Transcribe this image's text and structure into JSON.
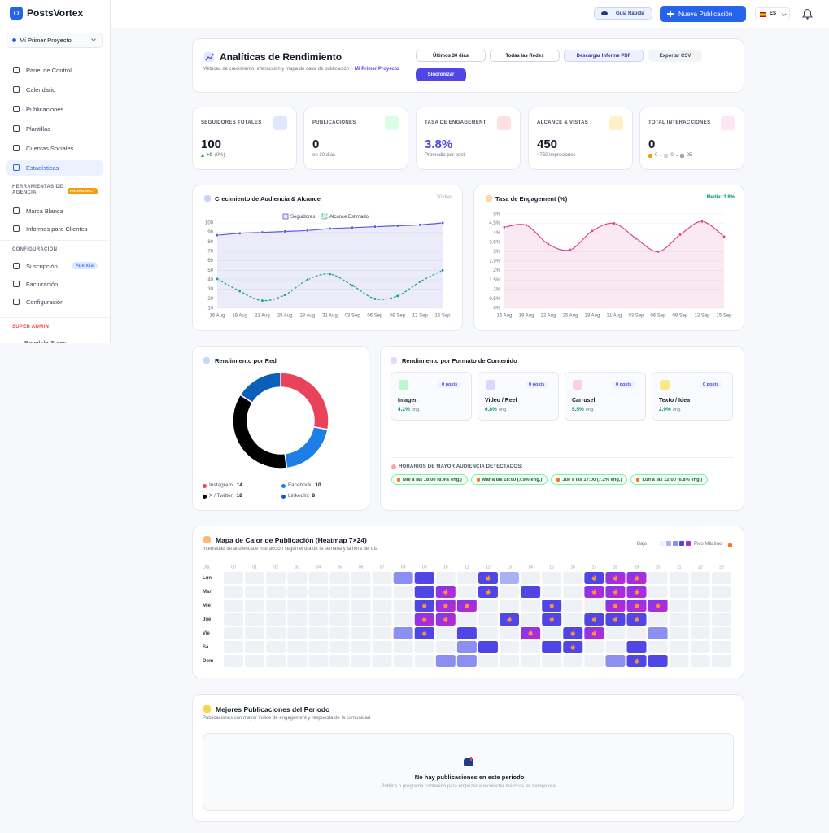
{
  "sidebar": {
    "brand": "PostsVortex",
    "project": "Mi Primer Proyecto",
    "nav": [
      "Panel de Control",
      "Calendario",
      "Publicaciones",
      "Plantillas",
      "Cuentas Sociales",
      "Estadísticas"
    ],
    "agency_title": [
      "HERRAMIENTAS DE",
      "AGENCIA"
    ],
    "agency_badge": "PROAGENCY",
    "agency_nav": [
      "Marca Blanca",
      "Informes para Clientes"
    ],
    "config_title": "CONFIGURACIÓN",
    "config_nav": [
      "Suscripción",
      "Facturación",
      "Configuración"
    ],
    "plan_badge": "Agencia",
    "admin_title": "SUPER ADMIN",
    "admin_nav": [
      "Panel de Super"
    ]
  },
  "topbar": {
    "guide": "Guía Rápida",
    "new_post": "Nueva Publicación",
    "language": "ES"
  },
  "header": {
    "title": "Analíticas de Rendimiento",
    "subtitle": "Métricas de crecimiento, interacción y mapa de calor de publicación •",
    "project": "Mi Primer Proyecto",
    "period": "Últimos 30 días",
    "network": "Todas las Redes",
    "pdf": "Descargar Informe PDF",
    "csv": "Exportar CSV",
    "sync": "Sincronizar"
  },
  "kpis": [
    {
      "label": "SEGUIDORES TOTALES",
      "value": "100",
      "change": "+0",
      "change_pct": "(0%)"
    },
    {
      "label": "PUBLICACIONES",
      "value": "0",
      "note": "en 30 días"
    },
    {
      "label": "TASA DE ENGAGEMENT",
      "value": "3.8%",
      "note": "Promedio por post"
    },
    {
      "label": "ALCANCE & VISTAS",
      "value": "450",
      "note": "~750 impresiones"
    },
    {
      "label": "TOTAL INTERACCIONES",
      "value": "0",
      "breakdown": [
        "0",
        "0",
        "25"
      ]
    }
  ],
  "content_formats": {
    "title": "Rendimiento por Formato de Contenido",
    "items": [
      {
        "name": "Imagen",
        "posts": "0 posts",
        "rate": "4.2%",
        "unit": "eng."
      },
      {
        "name": "Video / Reel",
        "posts": "0 posts",
        "rate": "6.8%",
        "unit": "eng."
      },
      {
        "name": "Carrusel",
        "posts": "0 posts",
        "rate": "5.5%",
        "unit": "eng."
      },
      {
        "name": "Texto / Idea",
        "posts": "0 posts",
        "rate": "2.9%",
        "unit": "eng."
      }
    ],
    "peak_title": "HORARIOS DE MAYOR AUDIENCIA DETECTADOS:",
    "peak_times": [
      "Mié a las 18:00 (8.4% eng.)",
      "Mar a las 18:00 (7.9% eng.)",
      "Jue a las 17:00 (7.2% eng.)",
      "Lun a las 12:00 (6.8% eng.)"
    ]
  },
  "best_posts": {
    "title": "Mejores Publicaciones del Periodo",
    "subtitle": "Publicaciones con mayor índice de engagement y respuesta de la comunidad",
    "empty_title": "No hay publicaciones en este periodo",
    "empty_text": "Publica o programa contenido para empezar a recolectar métricas en tiempo real."
  },
  "chart_data": [
    {
      "type": "line",
      "title": "Crecimiento de Audiencia & Alcance",
      "period": "30 días",
      "categories": [
        "16 Aug",
        "19 Aug",
        "22 Aug",
        "25 Aug",
        "28 Aug",
        "31 Aug",
        "03 Sep",
        "06 Sep",
        "09 Sep",
        "12 Sep",
        "15 Sep"
      ],
      "series": [
        {
          "name": "Seguidores",
          "color": "#5b5bd6",
          "area": true,
          "values": [
            87,
            89,
            90,
            91,
            92,
            94,
            95,
            96,
            97,
            98,
            100
          ]
        },
        {
          "name": "Alcance Estimado",
          "color": "#10a37f",
          "dashed": true,
          "values": [
            41,
            28,
            18,
            24,
            40,
            46,
            34,
            20,
            23,
            38,
            50
          ]
        }
      ],
      "ylim": [
        10,
        100
      ],
      "yticks": [
        10,
        20,
        30,
        40,
        50,
        60,
        70,
        80,
        90,
        100
      ],
      "grid": true
    },
    {
      "type": "line",
      "title": "Tasa de Engagement (%)",
      "average": "Media: 3.8%",
      "categories": [
        "16 Aug",
        "19 Aug",
        "22 Aug",
        "25 Aug",
        "28 Aug",
        "31 Aug",
        "03 Sep",
        "06 Sep",
        "09 Sep",
        "12 Sep",
        "15 Sep"
      ],
      "values": [
        4.3,
        4.4,
        3.4,
        3.1,
        4.1,
        4.5,
        3.7,
        3.0,
        3.9,
        4.6,
        3.8
      ],
      "color": "#d9468f",
      "area": true,
      "ylim": [
        0,
        5
      ],
      "yticks": [
        {
          "value": 0,
          "label": "0%"
        },
        {
          "value": 0.5,
          "label": "0.5%"
        },
        {
          "value": 1,
          "label": "1%"
        },
        {
          "value": 1.5,
          "label": "1.5%"
        },
        {
          "value": 2,
          "label": "2%"
        },
        {
          "value": 2.5,
          "label": "2.5%"
        },
        {
          "value": 3,
          "label": "3%"
        },
        {
          "value": 3.5,
          "label": "3.5%"
        },
        {
          "value": 4,
          "label": "4%"
        },
        {
          "value": 4.5,
          "label": "4.5%"
        },
        {
          "value": 5,
          "label": "5%"
        }
      ],
      "grid": true
    },
    {
      "type": "pie",
      "title": "Rendimiento por Red",
      "categories": [
        "Instagram:",
        "Facebook:",
        "X / Twitter:",
        "LinkedIn:"
      ],
      "values": [
        14,
        10,
        18,
        8
      ],
      "colors": [
        "#e8435a",
        "#1d7fe6",
        "#000000",
        "#0c5fb8"
      ]
    },
    {
      "type": "heatmap",
      "title": "Mapa de Calor de Publicación (Heatmap 7×24)",
      "subtitle": "Intensidad de audiencia e interacción según el día de la semana y la hora del día",
      "legend_low": "Bajo",
      "legend_high": "Pico Máximo",
      "row_header": "Día",
      "x": [
        "00",
        "01",
        "02",
        "03",
        "04",
        "05",
        "06",
        "07",
        "08",
        "09",
        "10",
        "11",
        "12",
        "13",
        "14",
        "15",
        "16",
        "17",
        "18",
        "19",
        "20",
        "21",
        "22",
        "23"
      ],
      "categories": [
        "Lun",
        "Mar",
        "Mié",
        "Jue",
        "Vie",
        "Sá",
        "Dom"
      ],
      "colors": [
        "#eef1f6",
        "#a9b1f6",
        "#8c8ff2",
        "#4f46e5",
        "#4f46e5"
      ],
      "peak_colors": [
        "#7c3aed",
        "#c026d3"
      ],
      "values": [
        [
          0,
          0,
          0,
          0,
          0,
          0,
          0,
          0,
          2,
          3,
          0,
          0,
          4,
          1,
          0,
          0,
          0,
          4,
          5,
          5,
          0,
          0,
          0,
          0
        ],
        [
          0,
          0,
          0,
          0,
          0,
          0,
          0,
          0,
          0,
          3,
          5,
          0,
          4,
          0,
          3,
          0,
          0,
          5,
          5,
          5,
          0,
          0,
          0,
          0
        ],
        [
          0,
          0,
          0,
          0,
          0,
          0,
          0,
          0,
          0,
          4,
          5,
          5,
          0,
          0,
          0,
          4,
          0,
          0,
          5,
          5,
          5,
          0,
          0,
          0
        ],
        [
          0,
          0,
          0,
          0,
          0,
          0,
          0,
          0,
          0,
          5,
          5,
          0,
          0,
          4,
          0,
          4,
          0,
          4,
          4,
          4,
          0,
          0,
          0,
          0
        ],
        [
          0,
          0,
          0,
          0,
          0,
          0,
          0,
          0,
          2,
          4,
          0,
          3,
          0,
          0,
          5,
          0,
          4,
          5,
          0,
          0,
          2,
          0,
          0,
          0
        ],
        [
          0,
          0,
          0,
          0,
          0,
          0,
          0,
          0,
          0,
          0,
          0,
          2,
          3,
          0,
          0,
          3,
          4,
          0,
          0,
          3,
          0,
          0,
          0,
          0
        ],
        [
          0,
          0,
          0,
          0,
          0,
          0,
          0,
          0,
          0,
          0,
          2,
          2,
          0,
          0,
          0,
          0,
          0,
          0,
          2,
          4,
          3,
          0,
          0,
          0
        ]
      ]
    }
  ]
}
